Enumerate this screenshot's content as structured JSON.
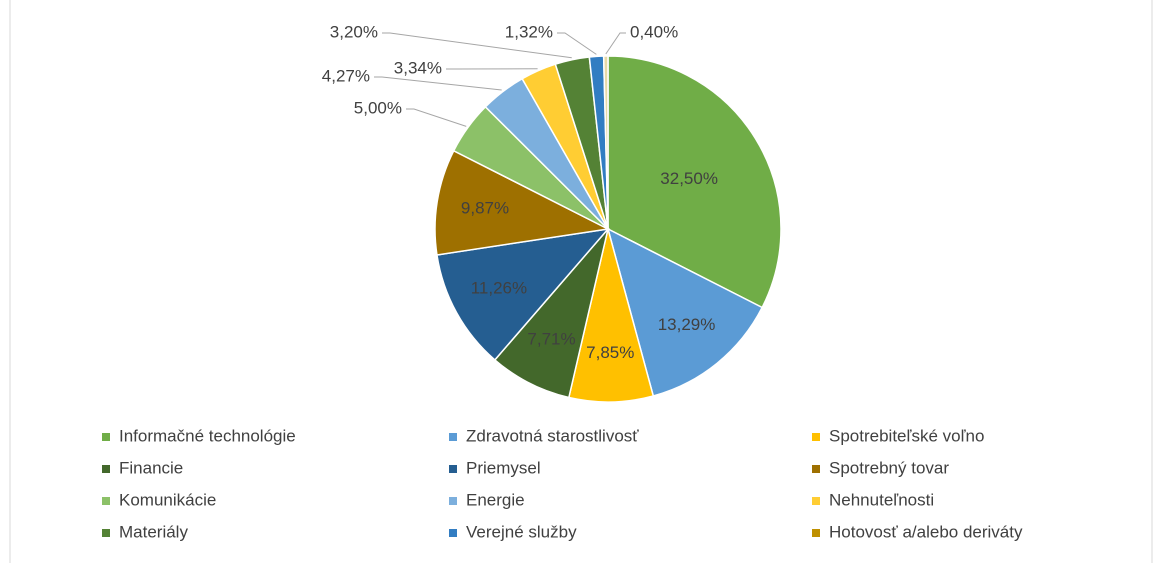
{
  "chart_data": {
    "type": "pie",
    "categories": [
      "Informačné technológie",
      "Zdravotná starostlivosť",
      "Spotrebiteľské voľno",
      "Financie",
      "Priemysel",
      "Spotrebný tovar",
      "Komunikácie",
      "Energie",
      "Nehnuteľnosti",
      "Materiály",
      "Verejné služby",
      "Hotovosť a/alebo deriváty"
    ],
    "values": [
      32.5,
      13.29,
      7.85,
      7.71,
      11.26,
      9.87,
      5.0,
      4.27,
      3.34,
      3.2,
      1.32,
      0.4
    ],
    "value_labels": [
      "32,50%",
      "13,29%",
      "7,85%",
      "7,71%",
      "11,26%",
      "9,87%",
      "5,00%",
      "4,27%",
      "3,34%",
      "3,20%",
      "1,32%",
      "0,40%"
    ],
    "colors": [
      "#70ad47",
      "#5b9bd5",
      "#ffc000",
      "#43682b",
      "#255e91",
      "#9e7000",
      "#8cc168",
      "#7cafdd",
      "#ffcd33",
      "#548235",
      "#327dc2",
      "#e8d9a8"
    ],
    "legend_colors": [
      "#70ad47",
      "#5b9bd5",
      "#ffc000",
      "#43682b",
      "#255e91",
      "#9e7000",
      "#8cc168",
      "#7cafdd",
      "#ffcd33",
      "#548235",
      "#327dc2",
      "#bf9000"
    ],
    "legend": "bottom"
  }
}
